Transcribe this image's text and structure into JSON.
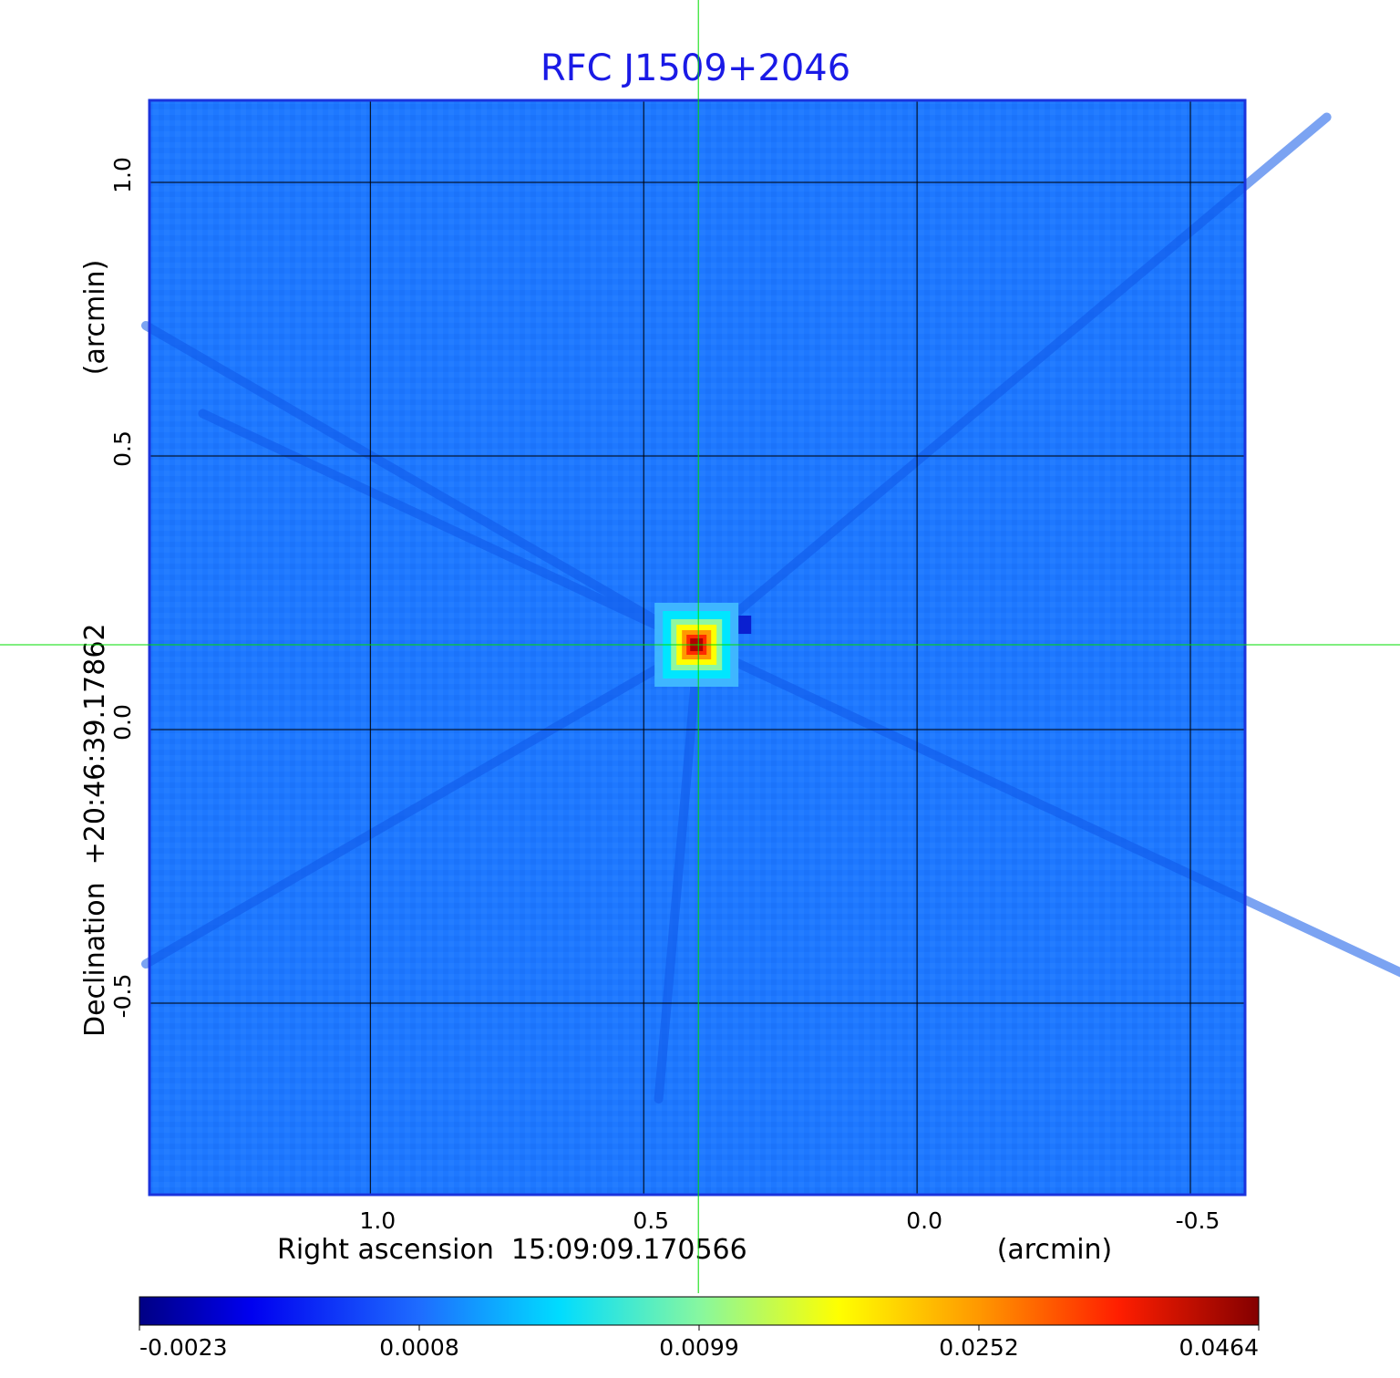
{
  "chart_data": {
    "type": "heatmap",
    "title": "RFC J1509+2046",
    "xlabel": "Right ascension  15:09:09.170566",
    "xunit": "(arcmin)",
    "ylabel": "Declination  +20:46:39.17862",
    "yunit": "(arcmin)",
    "x_ticks": [
      1.0,
      0.5,
      0.0,
      -0.5
    ],
    "x_tick_labels": [
      "1.0",
      "0.5",
      "0.0",
      "-0.5"
    ],
    "y_ticks": [
      1.0,
      0.5,
      0.0,
      -0.5
    ],
    "y_tick_labels": [
      "1.0",
      "0.5",
      "0.0",
      "-0.5"
    ],
    "xlim": [
      1.404,
      -0.6
    ],
    "ylim": [
      -0.85,
      1.15
    ],
    "grid": true,
    "crosshair": {
      "x": 0.4,
      "y": 0.155,
      "color": "#00dd00"
    },
    "peak": {
      "x": 0.4,
      "y": 0.155,
      "value": 0.0464
    },
    "colorbar": {
      "ticks": [
        "-0.0023",
        "0.0008",
        "0.0099",
        "0.0252",
        "0.0464"
      ],
      "min": -0.0023,
      "max": 0.0464,
      "colormap": "jet"
    },
    "background_color": "#1e78ff",
    "frame_color": "#1a33dd",
    "title_color": "#1a1ae6"
  }
}
